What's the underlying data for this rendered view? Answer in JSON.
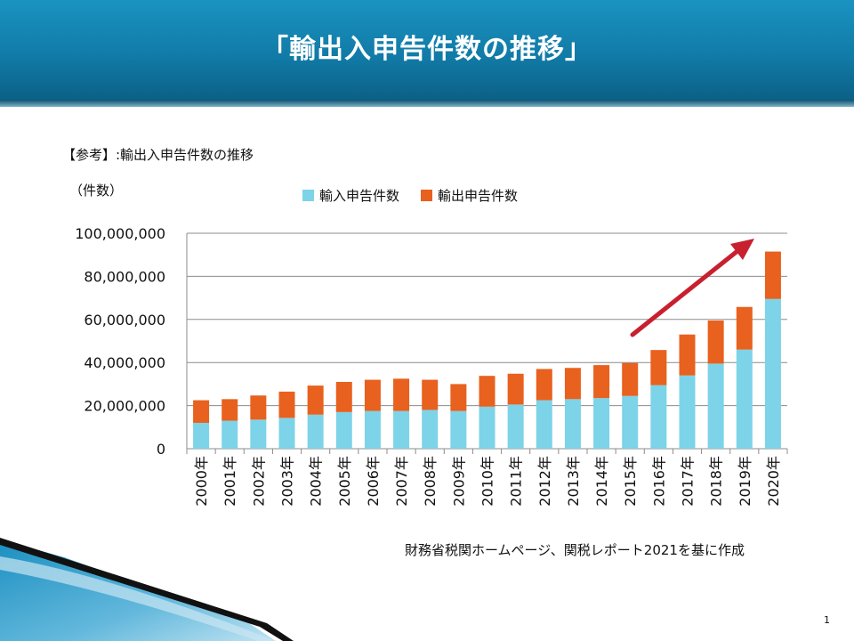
{
  "slide": {
    "title": "「輸出入申告件数の推移」",
    "reference": "【参考】:輸出入申告件数の推移",
    "unit_label": "（件数）",
    "source": "財務省税関ホームページ、関税レポート2021を基に作成",
    "page_number": "1"
  },
  "chart_data": {
    "type": "bar",
    "stacked": true,
    "categories": [
      "2000年",
      "2001年",
      "2002年",
      "2003年",
      "2004年",
      "2005年",
      "2006年",
      "2007年",
      "2008年",
      "2009年",
      "2010年",
      "2011年",
      "2012年",
      "2013年",
      "2014年",
      "2015年",
      "2016年",
      "2017年",
      "2018年",
      "2019年",
      "2020年"
    ],
    "series": [
      {
        "name": "輸入申告件数",
        "color": "#7dd3e8",
        "values": [
          12000000,
          13000000,
          13500000,
          14300000,
          15800000,
          17000000,
          17500000,
          17500000,
          18000000,
          17500000,
          19500000,
          20500000,
          22500000,
          23000000,
          23500000,
          24500000,
          29500000,
          34000000,
          39500000,
          46000000,
          69500000
        ]
      },
      {
        "name": "輸出申告件数",
        "color": "#e8611e",
        "values": [
          10500000,
          10000000,
          11200000,
          12200000,
          13500000,
          14000000,
          14500000,
          15000000,
          14000000,
          12500000,
          14300000,
          14300000,
          14500000,
          14500000,
          15300000,
          15300000,
          16300000,
          19000000,
          20000000,
          19800000,
          22000000
        ]
      }
    ],
    "ylim": [
      0,
      100000000
    ],
    "yticks": [
      0,
      20000000,
      40000000,
      60000000,
      80000000,
      100000000
    ],
    "ytick_labels": [
      "0",
      "20,000,000",
      "40,000,000",
      "60,000,000",
      "80,000,000",
      "100,000,000"
    ],
    "grid": true,
    "legend_position": "top",
    "annotation": "red-upward-trend-arrow"
  }
}
